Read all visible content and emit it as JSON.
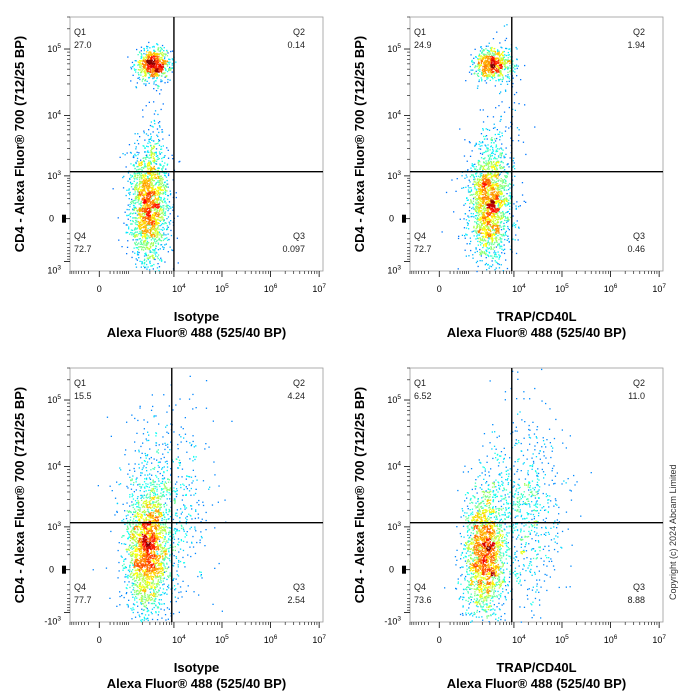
{
  "copyright": "Copyright (c) 2024 Abcam Limited",
  "chart_data": [
    {
      "type": "scatter",
      "subtype": "flow-cytometry-density-dot-plot",
      "xlabel": [
        "Isotype",
        "Alexa Fluor® 488  (525/40 BP)"
      ],
      "ylabel": "CD4 - Alexa Fluor® 700 (712/25 BP)",
      "x_scale": "biexponential",
      "y_scale": "biexponential",
      "x_ticks": [
        "0",
        "10^4",
        "10^5",
        "10^6",
        "10^7"
      ],
      "y_ticks": [
        "10^3",
        "0",
        "10^3",
        "10^4",
        "10^5"
      ],
      "quadrant_gate": {
        "x": 10000,
        "y": 1200
      },
      "quadrants": [
        {
          "id": "Q1",
          "value": "27.0",
          "pos": "top-left"
        },
        {
          "id": "Q2",
          "value": "0.14",
          "pos": "top-right"
        },
        {
          "id": "Q3",
          "value": "0.097",
          "pos": "bottom-right"
        },
        {
          "id": "Q4",
          "value": "72.7",
          "pos": "bottom-left"
        }
      ],
      "populations": [
        {
          "x": 3500,
          "y": 60000,
          "weight": 0.27,
          "spread_x": 0.18,
          "spread_y": 0.12
        },
        {
          "x": 2800,
          "y": 200,
          "weight": 0.71,
          "spread_x": 0.2,
          "spread_y": 0.45
        },
        {
          "x": 3800,
          "y": 5000,
          "weight": 0.02,
          "spread_x": 0.12,
          "spread_y": 0.6
        }
      ]
    },
    {
      "type": "scatter",
      "subtype": "flow-cytometry-density-dot-plot",
      "xlabel": [
        "TRAP/CD40L",
        "Alexa Fluor® 488  (525/40 BP)"
      ],
      "ylabel": "CD4 - Alexa Fluor® 700 (712/25 BP)",
      "x_scale": "biexponential",
      "y_scale": "biexponential",
      "x_ticks": [
        "0",
        "10^4",
        "10^5",
        "10^6",
        "10^7"
      ],
      "y_ticks": [
        "10^3",
        "0",
        "10^3",
        "10^4",
        "10^5"
      ],
      "quadrant_gate": {
        "x": 9000,
        "y": 1200
      },
      "quadrants": [
        {
          "id": "Q1",
          "value": "24.9",
          "pos": "top-left"
        },
        {
          "id": "Q2",
          "value": "1.94",
          "pos": "top-right"
        },
        {
          "id": "Q3",
          "value": "0.46",
          "pos": "bottom-right"
        },
        {
          "id": "Q4",
          "value": "72.7",
          "pos": "bottom-left"
        }
      ],
      "populations": [
        {
          "x": 3500,
          "y": 60000,
          "weight": 0.25,
          "spread_x": 0.2,
          "spread_y": 0.12
        },
        {
          "x": 2800,
          "y": 200,
          "weight": 0.71,
          "spread_x": 0.22,
          "spread_y": 0.45
        },
        {
          "x": 7000,
          "y": 5000,
          "weight": 0.04,
          "spread_x": 0.2,
          "spread_y": 0.7
        }
      ]
    },
    {
      "type": "scatter",
      "subtype": "flow-cytometry-density-dot-plot",
      "xlabel": [
        "Isotype",
        "Alexa Fluor® 488  (525/40 BP)"
      ],
      "ylabel": "CD4 - Alexa Fluor® 700 (712/25 BP)",
      "x_scale": "biexponential",
      "y_scale": "biexponential",
      "x_ticks": [
        "0",
        "10^4",
        "10^5",
        "10^6",
        "10^7"
      ],
      "y_ticks": [
        "-10^3",
        "0",
        "10^3",
        "10^4",
        "10^5"
      ],
      "quadrant_gate": {
        "x": 9000,
        "y": 1200
      },
      "quadrants": [
        {
          "id": "Q1",
          "value": "15.5",
          "pos": "top-left"
        },
        {
          "id": "Q2",
          "value": "4.24",
          "pos": "top-right"
        },
        {
          "id": "Q3",
          "value": "2.54",
          "pos": "bottom-right"
        },
        {
          "id": "Q4",
          "value": "77.7",
          "pos": "bottom-left"
        }
      ],
      "populations": [
        {
          "x": 2500,
          "y": 300,
          "weight": 0.72,
          "spread_x": 0.22,
          "spread_y": 0.5
        },
        {
          "x": 6000,
          "y": 2000,
          "weight": 0.28,
          "spread_x": 0.45,
          "spread_y": 0.75
        }
      ]
    },
    {
      "type": "scatter",
      "subtype": "flow-cytometry-density-dot-plot",
      "xlabel": [
        "TRAP/CD40L",
        "Alexa Fluor® 488  (525/40 BP)"
      ],
      "ylabel": "CD4 - Alexa Fluor® 700 (712/25 BP)",
      "x_scale": "biexponential",
      "y_scale": "biexponential",
      "x_ticks": [
        "0",
        "10^4",
        "10^5",
        "10^6",
        "10^7"
      ],
      "y_ticks": [
        "-10^3",
        "0",
        "10^3",
        "10^4",
        "10^5"
      ],
      "quadrant_gate": {
        "x": 9000,
        "y": 1200
      },
      "quadrants": [
        {
          "id": "Q1",
          "value": "6.52",
          "pos": "top-left"
        },
        {
          "id": "Q2",
          "value": "11.0",
          "pos": "top-right"
        },
        {
          "id": "Q3",
          "value": "8.88",
          "pos": "bottom-right"
        },
        {
          "id": "Q4",
          "value": "73.6",
          "pos": "bottom-left"
        }
      ],
      "populations": [
        {
          "x": 2200,
          "y": 200,
          "weight": 0.7,
          "spread_x": 0.22,
          "spread_y": 0.5
        },
        {
          "x": 14000,
          "y": 2000,
          "weight": 0.3,
          "spread_x": 0.45,
          "spread_y": 0.7
        }
      ]
    }
  ]
}
